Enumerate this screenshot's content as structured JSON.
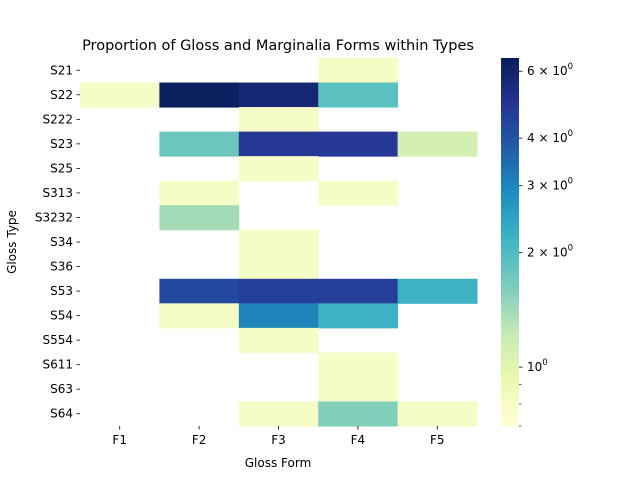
{
  "chart_data": {
    "type": "heatmap",
    "title": "Proportion of Gloss and Marginalia Forms within Types",
    "xlabel": "Gloss Form",
    "ylabel": "Gloss Type",
    "columns": [
      "F1",
      "F2",
      "F3",
      "F4",
      "F5"
    ],
    "rows": [
      "S21",
      "S22",
      "S222",
      "S23",
      "S25",
      "S313",
      "S3232",
      "S34",
      "S36",
      "S53",
      "S54",
      "S554",
      "S611",
      "S63",
      "S64"
    ],
    "values": [
      [
        null,
        null,
        null,
        0.8,
        null
      ],
      [
        0.8,
        6.3,
        5.7,
        1.9,
        null
      ],
      [
        null,
        null,
        0.8,
        null,
        null
      ],
      [
        null,
        1.75,
        4.8,
        4.8,
        1.1
      ],
      [
        null,
        null,
        0.8,
        null,
        null
      ],
      [
        null,
        0.8,
        null,
        0.8,
        null
      ],
      [
        null,
        1.4,
        null,
        null,
        null
      ],
      [
        null,
        null,
        0.8,
        null,
        null
      ],
      [
        null,
        null,
        0.8,
        null,
        null
      ],
      [
        null,
        4.3,
        4.6,
        4.6,
        2.2
      ],
      [
        null,
        0.8,
        3.0,
        2.2,
        null
      ],
      [
        null,
        null,
        0.8,
        null,
        null
      ],
      [
        null,
        null,
        null,
        0.8,
        null
      ],
      [
        null,
        null,
        null,
        0.8,
        null
      ],
      [
        null,
        null,
        0.8,
        1.6,
        0.8
      ]
    ],
    "colormap": "YlGnBu",
    "color_scale": "log",
    "vmin": 0.7,
    "vmax": 6.5,
    "colorbar": {
      "major_ticks": [
        {
          "value": 1,
          "base": "10",
          "exp": "0"
        },
        {
          "value": 2,
          "base": "2 × 10",
          "exp": "0"
        },
        {
          "value": 3,
          "base": "3 × 10",
          "exp": "0"
        },
        {
          "value": 4,
          "base": "4 × 10",
          "exp": "0"
        },
        {
          "value": 6,
          "base": "6 × 10",
          "exp": "0"
        }
      ],
      "minor_ticks": [
        0.7,
        0.8,
        0.9
      ]
    }
  }
}
